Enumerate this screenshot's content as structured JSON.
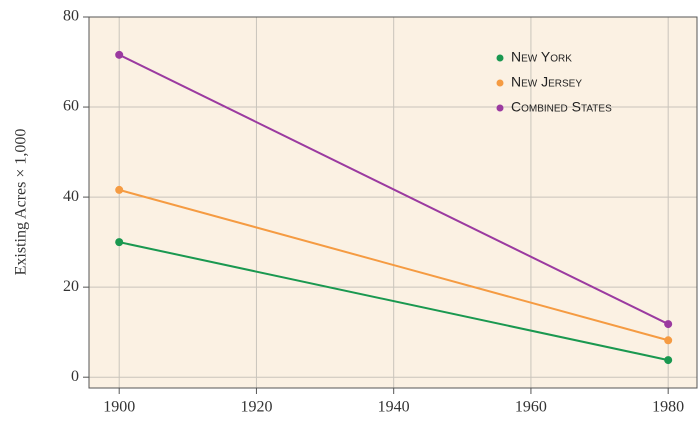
{
  "chart_data": {
    "type": "line",
    "y_label": "Existing Acres × 1,000",
    "x": [
      1900,
      1980
    ],
    "series": [
      {
        "name": "New York",
        "color": "#1a9850",
        "values": [
          30,
          3.8
        ]
      },
      {
        "name": "New Jersey",
        "color": "#f59b42",
        "values": [
          41.6,
          8.2
        ]
      },
      {
        "name": "Combined States",
        "color": "#9b3aa0",
        "values": [
          71.6,
          11.8
        ]
      }
    ],
    "xlim": [
      1895.6,
      1984.2
    ],
    "xticks": [
      1900,
      1920,
      1940,
      1960,
      1980
    ],
    "ylim": [
      -2.4,
      80
    ],
    "yticks": [
      0,
      20,
      40,
      60,
      80
    ],
    "grid": true,
    "legend": "upper right",
    "background": "#fbf1e3"
  }
}
